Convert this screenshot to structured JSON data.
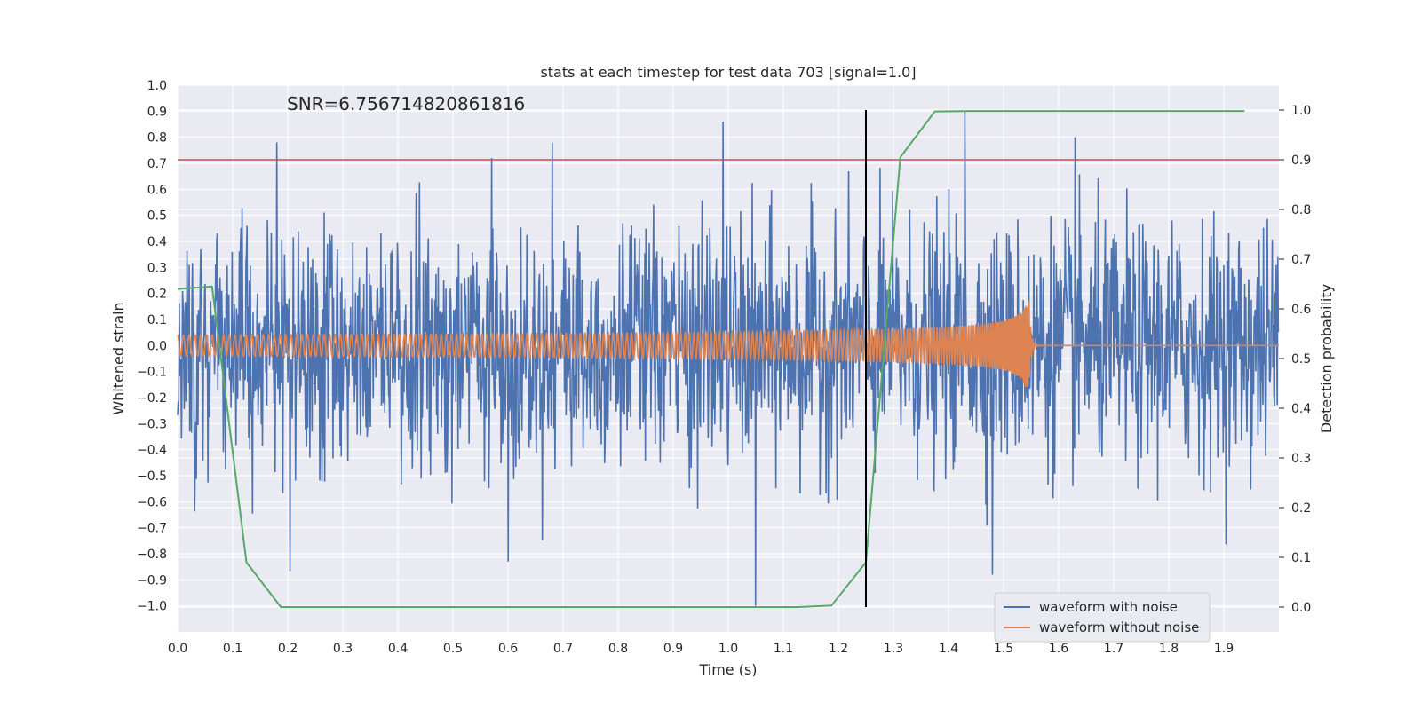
{
  "chart_data": {
    "type": "line",
    "title": "stats at each timestep for test data 703 [signal=1.0]",
    "xlabel": "Time (s)",
    "ylabel": "Whitened strain",
    "y2label": "Detection probability",
    "xlim": [
      0.0,
      2.0
    ],
    "ylim": [
      -1.1,
      1.0
    ],
    "y2lim": [
      -0.05,
      1.05
    ],
    "grid": true,
    "annotation": "SNR=6.756714820861816",
    "x_ticks": [
      "0.0",
      "0.1",
      "0.2",
      "0.3",
      "0.4",
      "0.5",
      "0.6",
      "0.7",
      "0.8",
      "0.9",
      "1.0",
      "1.1",
      "1.2",
      "1.3",
      "1.4",
      "1.5",
      "1.6",
      "1.7",
      "1.8",
      "1.9"
    ],
    "y_ticks": [
      "1.0",
      "0.9",
      "0.8",
      "0.7",
      "0.6",
      "0.5",
      "0.4",
      "0.3",
      "0.2",
      "0.1",
      "0.0",
      "−0.1",
      "−0.2",
      "−0.3",
      "−0.4",
      "−0.5",
      "−0.6",
      "−0.7",
      "−0.8",
      "−0.9",
      "−1.0"
    ],
    "y2_ticks": [
      "1.0",
      "0.9",
      "0.8",
      "0.7",
      "0.6",
      "0.5",
      "0.4",
      "0.3",
      "0.2",
      "0.1",
      "0.0"
    ],
    "threshold": {
      "value": 0.9,
      "axis": "right",
      "color": "#c44e52"
    },
    "vertical_line": {
      "x": 1.25,
      "ymin": 0.0,
      "ymax": 1.0,
      "color": "#000000"
    },
    "series": [
      {
        "name": "waveform with noise",
        "color": "#4c72b0",
        "axis": "left",
        "description": "noisy whitened strain, values roughly within -1.0 to 0.9",
        "notable_peaks": [
          {
            "x": 0.18,
            "y": 0.78
          },
          {
            "x": 0.57,
            "y": 0.72
          },
          {
            "x": 0.68,
            "y": 0.78
          },
          {
            "x": 0.99,
            "y": 0.86
          },
          {
            "x": 1.43,
            "y": 0.9
          },
          {
            "x": 1.63,
            "y": 0.8
          },
          {
            "x": 0.6,
            "y": -0.83
          },
          {
            "x": 1.05,
            "y": -1.0
          },
          {
            "x": 1.48,
            "y": -0.88
          }
        ]
      },
      {
        "name": "waveform without noise",
        "color": "#dd8452",
        "axis": "left",
        "description": "chirp signal, amplitude ~0.04 growing to ~0.2 at merger near t=1.54, ringdown to 0 after ~1.56"
      },
      {
        "name": "detection probability",
        "color": "#55a868",
        "axis": "right",
        "x": [
          0.0,
          0.0625,
          0.125,
          0.1875,
          0.25,
          0.3125,
          0.375,
          0.4375,
          0.5,
          0.5625,
          0.625,
          0.6875,
          0.75,
          0.8125,
          0.875,
          0.9375,
          1.0,
          1.0625,
          1.125,
          1.1875,
          1.25,
          1.3125,
          1.375,
          1.4375,
          1.5,
          1.5625,
          1.625,
          1.6875,
          1.75,
          1.8125,
          1.875,
          1.9375
        ],
        "values": [
          0.64,
          0.645,
          0.09,
          0.0,
          0.0,
          0.0,
          0.0,
          0.0,
          0.0,
          0.0,
          0.0,
          0.0,
          0.0,
          0.0,
          0.0,
          0.0,
          0.0,
          0.0,
          0.0,
          0.003,
          0.09,
          0.905,
          0.997,
          0.998,
          0.998,
          0.998,
          0.998,
          0.998,
          0.998,
          0.998,
          0.998,
          0.998
        ]
      }
    ],
    "legend": {
      "placement": "lower-right",
      "entries": [
        {
          "label": "waveform with noise",
          "color": "#4c72b0"
        },
        {
          "label": "waveform without noise",
          "color": "#dd8452"
        }
      ]
    }
  }
}
